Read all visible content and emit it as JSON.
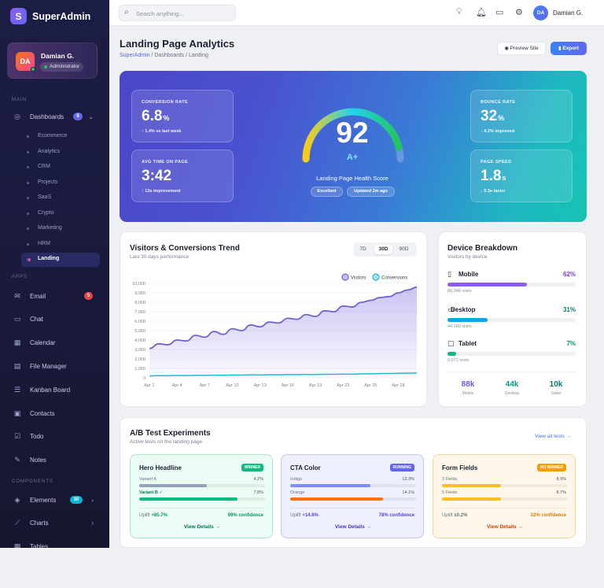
{
  "brand": {
    "logo_letter": "S",
    "name": "SuperAdmin"
  },
  "user": {
    "initials": "DA",
    "name": "Damian G.",
    "role": "Administrator"
  },
  "sidebar": {
    "sections": {
      "main": "MAIN",
      "apps": "APPS",
      "components": "COMPONENTS"
    },
    "dashboards": {
      "label": "Dashboards",
      "badge": "9",
      "icon": "dashboard-icon"
    },
    "sub_items": [
      "Ecommerce",
      "Analytics",
      "CRM",
      "Projects",
      "SaaS",
      "Crypto",
      "Marketing",
      "HRM",
      "Landing"
    ],
    "active_sub": "Landing",
    "apps": [
      {
        "label": "Email",
        "icon": "mail-icon",
        "badge": "5"
      },
      {
        "label": "Chat",
        "icon": "chat-icon"
      },
      {
        "label": "Calendar",
        "icon": "calendar-icon"
      },
      {
        "label": "File Manager",
        "icon": "folder-icon"
      },
      {
        "label": "Kanban Board",
        "icon": "kanban-icon"
      },
      {
        "label": "Contacts",
        "icon": "contacts-icon"
      },
      {
        "label": "Todo",
        "icon": "checkbox-icon"
      },
      {
        "label": "Notes",
        "icon": "notes-icon"
      }
    ],
    "components": [
      {
        "label": "Elements",
        "icon": "cube-icon",
        "badge": "30"
      },
      {
        "label": "Charts",
        "icon": "chart-icon"
      },
      {
        "label": "Tables",
        "icon": "table-icon"
      }
    ]
  },
  "topbar": {
    "search_placeholder": "Search anything...",
    "user_initials": "DA",
    "user_name": "Damian G."
  },
  "page": {
    "title": "Landing Page Analytics",
    "breadcrumb": [
      "SuperAdmin",
      "Dashboards",
      "Landing"
    ],
    "preview_label": "Preview Site",
    "export_label": "Export"
  },
  "hero": {
    "conversion": {
      "label": "CONVERSION RATE",
      "value": "6.8",
      "unit": "%",
      "sub": "↑ 1.4% vs last week"
    },
    "time": {
      "label": "AVG TIME ON PAGE",
      "value": "3:42",
      "sub": "↑ 12s improvement"
    },
    "bounce": {
      "label": "BOUNCE RATE",
      "value": "32",
      "unit": "%",
      "sub": "↓ 4.2% improved"
    },
    "speed": {
      "label": "PAGE SPEED",
      "value": "1.8",
      "unit": "s",
      "sub": "↓ 0.3s faster"
    },
    "score": "92",
    "score_fraction": 0.92,
    "grade": "A+",
    "health_label": "Landing Page Health Score",
    "pill_status": "Excellent",
    "pill_updated": "Updated 2m ago"
  },
  "trend": {
    "title": "Visitors & Conversions Trend",
    "subtitle": "Last 30 days performance",
    "ranges": [
      "7D",
      "30D",
      "90D"
    ],
    "active_range": "30D"
  },
  "chart_data": {
    "type": "area",
    "x_ticks": [
      "Apr 1",
      "Apr 4",
      "Apr 7",
      "Apr 10",
      "Apr 13",
      "Apr 16",
      "Apr 19",
      "Apr 22",
      "Apr 25",
      "Apr 28"
    ],
    "y_ticks": [
      "10,000",
      "9,000",
      "8,000",
      "7,000",
      "6,000",
      "5,000",
      "4,000",
      "3,000",
      "2,000",
      "1,000",
      "0"
    ],
    "ylim": [
      0,
      10000
    ],
    "xlim": [
      1,
      30
    ],
    "legend_position": "top-right",
    "series": [
      {
        "name": "Visitors",
        "color": "#6f63d6",
        "x": [
          1,
          2,
          3,
          4,
          5,
          6,
          7,
          8,
          9,
          10,
          11,
          12,
          13,
          14,
          15,
          16,
          17,
          18,
          19,
          20,
          21,
          22,
          23,
          24,
          25,
          26,
          27,
          28,
          29,
          30
        ],
        "values": [
          3100,
          3600,
          3500,
          4000,
          3900,
          4500,
          4300,
          4900,
          4600,
          5200,
          5000,
          5600,
          5400,
          5900,
          5800,
          6300,
          6200,
          6700,
          6500,
          7100,
          7000,
          7600,
          7500,
          8000,
          8200,
          8500,
          8600,
          9000,
          9300,
          9600
        ]
      },
      {
        "name": "Conversions",
        "color": "#22b8d6",
        "x": [
          1,
          2,
          3,
          4,
          5,
          6,
          7,
          8,
          9,
          10,
          11,
          12,
          13,
          14,
          15,
          16,
          17,
          18,
          19,
          20,
          21,
          22,
          23,
          24,
          25,
          26,
          27,
          28,
          29,
          30
        ],
        "values": [
          200,
          230,
          220,
          250,
          240,
          270,
          260,
          280,
          270,
          300,
          290,
          320,
          300,
          330,
          320,
          350,
          340,
          360,
          350,
          380,
          370,
          400,
          390,
          420,
          430,
          450,
          460,
          480,
          500,
          520
        ]
      }
    ]
  },
  "devices": {
    "title": "Device Breakdown",
    "subtitle": "Visitors by device",
    "items": [
      {
        "label": "Mobile",
        "pct": "62%",
        "fraction": 0.62,
        "visits": "88,348 visits",
        "color": "#8b5cf6",
        "icon": "phone-icon"
      },
      {
        "label": "Desktop",
        "pct": "31%",
        "fraction": 0.31,
        "visits": "44,180 visits",
        "color": "#0ea5e9",
        "icon": "desktop-icon"
      },
      {
        "label": "Tablet",
        "pct": "7%",
        "fraction": 0.07,
        "visits": "9,972 visits",
        "color": "#10b981",
        "icon": "tablet-icon"
      }
    ],
    "totals": [
      {
        "value": "88k",
        "label": "Mobile",
        "color": "#6d5bd8"
      },
      {
        "value": "44k",
        "label": "Desktop",
        "color": "#0d9488"
      },
      {
        "value": "10k",
        "label": "Tablet",
        "color": "#0f766e"
      }
    ]
  },
  "ab": {
    "title": "A/B Test Experiments",
    "subtitle": "Active tests on the landing page",
    "view_all": "View all tests →",
    "tests": [
      {
        "title": "Hero Headline",
        "badge": "WINNER",
        "badge_color": "#10b981",
        "bg": "#ecfbf3",
        "border": "#a7e8c6",
        "variants": [
          {
            "label": "Variant A",
            "value": "4.2%",
            "fraction": 0.54,
            "color": "#94a3b8"
          },
          {
            "label": "Variant B ✓",
            "value": "7.8%",
            "fraction": 0.78,
            "color": "#10b981",
            "highlight": true
          }
        ],
        "uplift_label": "Uplift",
        "uplift_value": "+85.7%",
        "uplift_color": "#059669",
        "confidence": "99% confidence",
        "conf_color": "#059669",
        "details": "View Details →",
        "details_color": "#047857"
      },
      {
        "title": "CTA Color",
        "badge": "RUNNING",
        "badge_color": "#6366f1",
        "bg": "#eeefff",
        "border": "#c3c6f5",
        "variants": [
          {
            "label": "Indigo",
            "value": "12.3%",
            "fraction": 0.64,
            "color": "#818cf8"
          },
          {
            "label": "Orange",
            "value": "14.1%",
            "fraction": 0.74,
            "color": "#f97316"
          }
        ],
        "uplift_label": "Uplift",
        "uplift_value": "+14.6%",
        "uplift_color": "#4f46e5",
        "confidence": "78% confidence",
        "conf_color": "#4f46e5",
        "details": "View Details →",
        "details_color": "#4338ca"
      },
      {
        "title": "Form Fields",
        "badge": "NO WINNER",
        "badge_color": "#f59e0b",
        "bg": "#fff8ea",
        "border": "#f5d79a",
        "variants": [
          {
            "label": "3 Fields",
            "value": "8.9%",
            "fraction": 0.47,
            "color": "#fbbf24"
          },
          {
            "label": "5 Fields",
            "value": "8.7%",
            "fraction": 0.47,
            "color": "#fbbf24"
          }
        ],
        "uplift_label": "Uplift",
        "uplift_value": "±0.2%",
        "uplift_color": "#6b7080",
        "confidence": "32% confidence",
        "conf_color": "#d97706",
        "details": "View Details →",
        "details_color": "#c2410c"
      }
    ]
  }
}
